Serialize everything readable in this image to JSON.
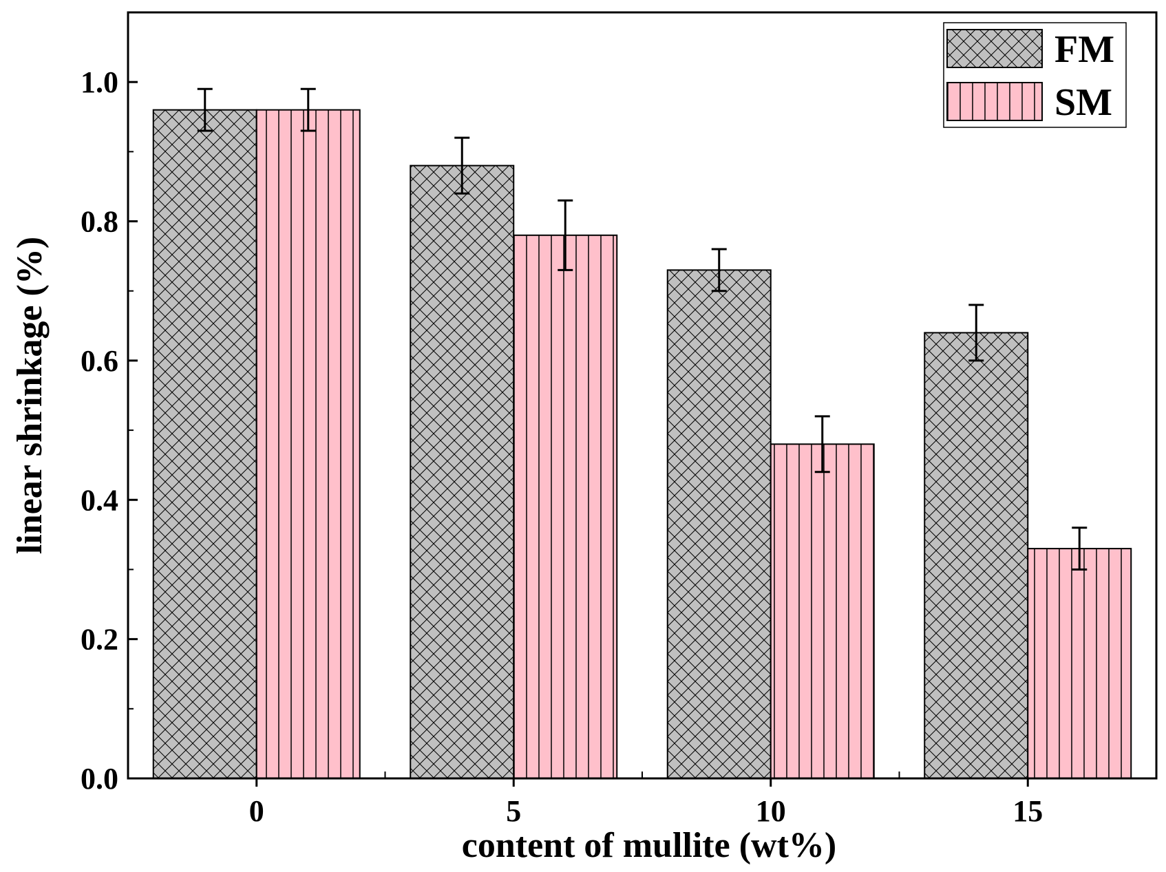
{
  "chart_data": {
    "type": "bar",
    "title": "",
    "xlabel": "content of mullite (wt%)",
    "ylabel": "linear shrinkage (%)",
    "categories": [
      "0",
      "5",
      "10",
      "15"
    ],
    "ylim": [
      0,
      1.1
    ],
    "yticks": [
      0.0,
      0.2,
      0.4,
      0.6,
      0.8,
      1.0
    ],
    "ytick_labels": [
      "0.0",
      "0.2",
      "0.4",
      "0.6",
      "0.8",
      "1.0"
    ],
    "grid": false,
    "legend_position": "top-right",
    "series": [
      {
        "name": "FM",
        "values": [
          0.96,
          0.88,
          0.73,
          0.64
        ],
        "errors": [
          0.03,
          0.04,
          0.03,
          0.04
        ],
        "color": "#c0c0c0",
        "pattern": "crosshatch"
      },
      {
        "name": "SM",
        "values": [
          0.96,
          0.78,
          0.48,
          0.33
        ],
        "errors": [
          0.03,
          0.05,
          0.04,
          0.03
        ],
        "color": "#ffc0cb",
        "pattern": "vertical-lines"
      }
    ]
  }
}
